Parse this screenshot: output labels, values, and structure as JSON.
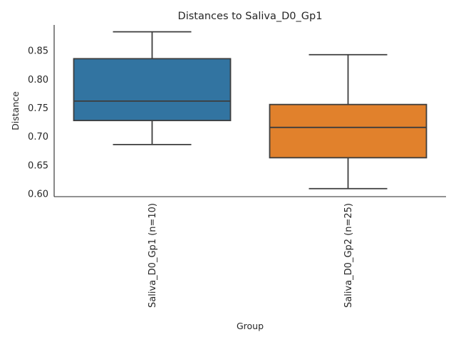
{
  "chart_data": {
    "type": "box",
    "title": "Distances to Saliva_D0_Gp1",
    "xlabel": "Group",
    "ylabel": "Distance",
    "ylim": [
      0.595,
      0.895
    ],
    "yticks": [
      "0.60",
      "0.65",
      "0.70",
      "0.75",
      "0.80",
      "0.85"
    ],
    "categories": [
      "Saliva_D0_Gp1 (n=10)",
      "Saliva_D0_Gp2 (n=25)"
    ],
    "boxes": [
      {
        "category": "Saliva_D0_Gp1 (n=10)",
        "whisker_low": 0.686,
        "q1": 0.728,
        "median": 0.762,
        "q3": 0.836,
        "whisker_high": 0.883,
        "color": "#3274a1"
      },
      {
        "category": "Saliva_D0_Gp2 (n=25)",
        "whisker_low": 0.609,
        "q1": 0.663,
        "median": 0.716,
        "q3": 0.756,
        "whisker_high": 0.843,
        "color": "#e1812c"
      }
    ],
    "line_color": "#3d3d3d",
    "grid": false,
    "legend": "none"
  }
}
